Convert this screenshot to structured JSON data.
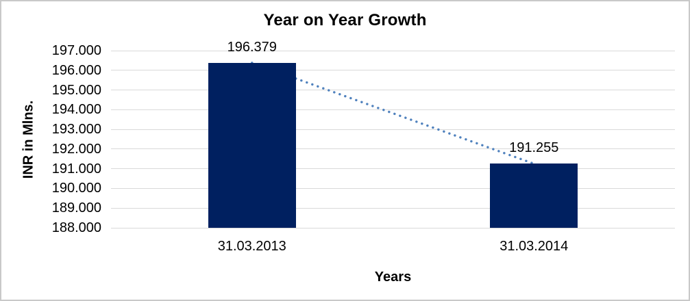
{
  "chart_data": {
    "type": "bar",
    "title": "Year on Year Growth",
    "xlabel": "Years",
    "ylabel": "INR in Mlns.",
    "categories": [
      "31.03.2013",
      "31.03.2014"
    ],
    "values": [
      196.379,
      191.255
    ],
    "data_labels": [
      "196.379",
      "191.255"
    ],
    "y_ticks": [
      "197.000",
      "196.000",
      "195.000",
      "194.000",
      "193.000",
      "192.000",
      "191.000",
      "190.000",
      "189.000",
      "188.000"
    ],
    "ylim": [
      188,
      197
    ],
    "grid": "horizontal",
    "legend": "none",
    "trendline": {
      "style": "dotted",
      "from": 196.379,
      "to": 191.255
    },
    "colors": {
      "bar": "#002060",
      "trendline": "#4F81BD",
      "gridline": "#D9D9D9",
      "text": "#000000",
      "border": "#C9C9C9",
      "background": "#FFFFFF"
    }
  }
}
